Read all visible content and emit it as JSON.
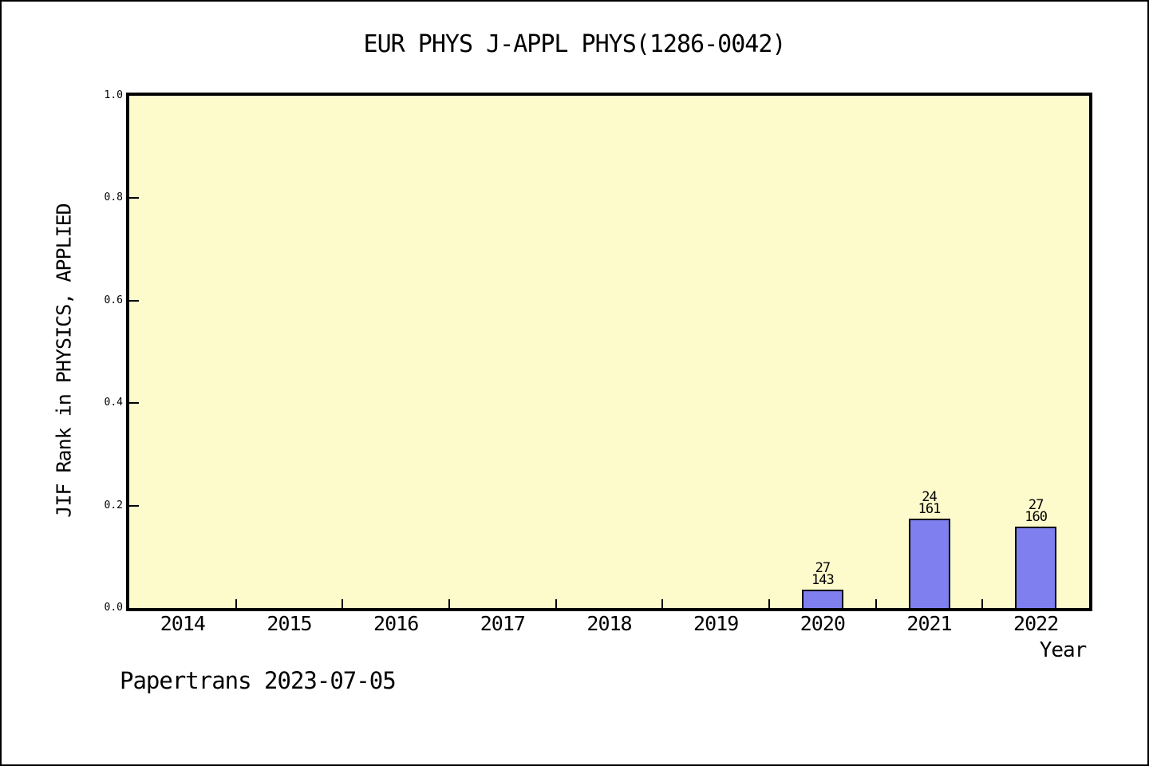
{
  "chart_data": {
    "type": "bar",
    "title": "EUR PHYS J-APPL PHYS(1286-0042)",
    "xlabel": "Year",
    "ylabel": "JIF Rank in PHYSICS, APPLIED",
    "categories": [
      "2014",
      "2015",
      "2016",
      "2017",
      "2018",
      "2019",
      "2020",
      "2021",
      "2022"
    ],
    "y_ticks": [
      "0.0",
      "0.2",
      "0.4",
      "0.6",
      "0.8",
      "1.0"
    ],
    "ylim": [
      0,
      1
    ],
    "grid": false,
    "legend": null,
    "plot_bg": "#fdfbcc",
    "bar_fill": "#7f7ff0",
    "bar_stroke": "#000000",
    "bars": [
      {
        "category": "2020",
        "height": 0.036,
        "rank": "27",
        "total": "143"
      },
      {
        "category": "2021",
        "height": 0.174,
        "rank": "24",
        "total": "161"
      },
      {
        "category": "2022",
        "height": 0.159,
        "rank": "27",
        "total": "160"
      }
    ]
  },
  "footer": {
    "text": "Papertrans 2023-07-05"
  }
}
